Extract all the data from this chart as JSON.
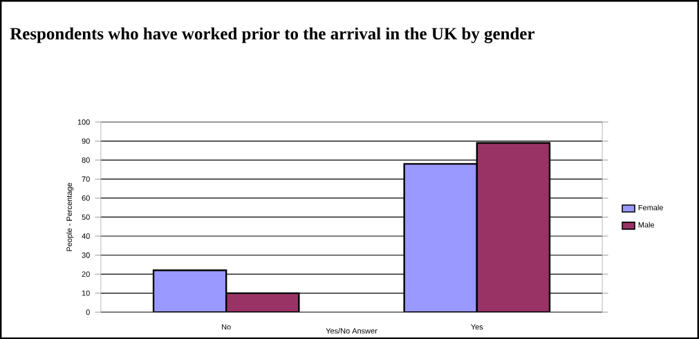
{
  "chart_data": {
    "type": "bar",
    "title": "Respondents who have worked prior to the arrival in the UK by gender",
    "xlabel": "Yes/No Answer",
    "ylabel": "People - Percentage",
    "categories": [
      "No",
      "Yes"
    ],
    "series": [
      {
        "name": "Female",
        "color": "#9999ff",
        "values": [
          22,
          78
        ]
      },
      {
        "name": "Male",
        "color": "#993366",
        "values": [
          10,
          89
        ]
      }
    ],
    "ylim": [
      0,
      100
    ],
    "yticks": [
      0,
      10,
      20,
      30,
      40,
      50,
      60,
      70,
      80,
      90,
      100
    ],
    "grid": "y",
    "legend": "right"
  }
}
